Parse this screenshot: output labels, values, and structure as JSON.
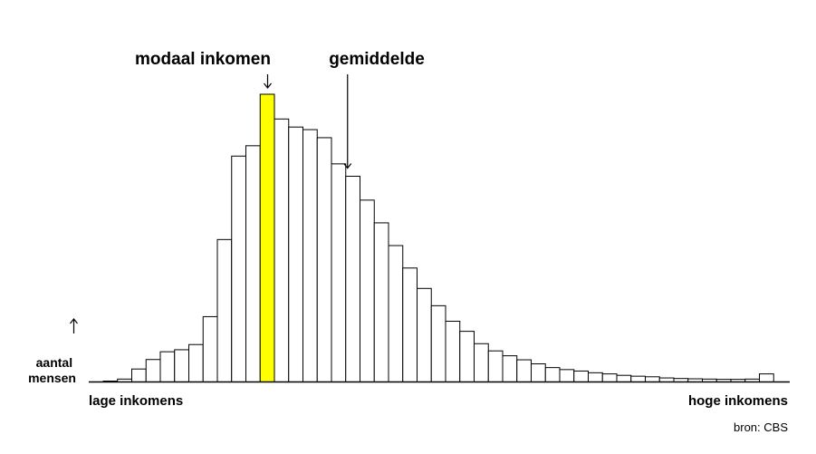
{
  "chart_data": {
    "type": "bar",
    "values": [
      0.3,
      1,
      4.5,
      7.8,
      10.5,
      11.2,
      13,
      22.7,
      49.5,
      78.5,
      82.1,
      100,
      91.4,
      88.6,
      87.7,
      84.9,
      75.8,
      71.5,
      63.2,
      55.3,
      47.4,
      39.6,
      32.5,
      26.5,
      21.1,
      17.6,
      13.3,
      10.8,
      9.1,
      7.7,
      6.3,
      5,
      4.3,
      3.8,
      3.2,
      2.8,
      2.3,
      2,
      1.8,
      1.4,
      1.2,
      1.1,
      1,
      0.9,
      0.9,
      1,
      2.8
    ],
    "highlight_index": 11,
    "mean_index": 17,
    "highlight_color": "#ffff00",
    "bar_color": "#ffffff",
    "stroke_color": "#000000",
    "ylabel": "aantal mensen",
    "xlabel_left": "lage inkomens",
    "xlabel_right": "hoge inkomens",
    "annotations": {
      "modal": "modaal inkomen",
      "mean": "gemiddelde"
    },
    "source": "bron: CBS",
    "grid": false,
    "legend": "none"
  }
}
